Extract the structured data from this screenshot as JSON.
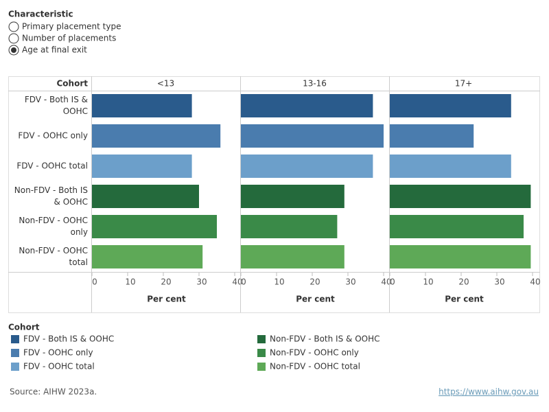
{
  "controls": {
    "title": "Characteristic",
    "options": [
      "Primary placement type",
      "Number of placements",
      "Age at final exit"
    ],
    "selected": 2
  },
  "chart_data": {
    "type": "bar",
    "orientation": "horizontal",
    "row_header": "Cohort",
    "categories": [
      "<13",
      "13-16",
      "17+"
    ],
    "series": [
      {
        "name": "FDV - Both IS & OOHC",
        "color": "#2a5b8c",
        "values": [
          28,
          37,
          34
        ]
      },
      {
        "name": "FDV - OOHC only",
        "color": "#4a7cae",
        "values": [
          36,
          40,
          23.5
        ]
      },
      {
        "name": "FDV - OOHC total",
        "color": "#6c9fca",
        "values": [
          28,
          37,
          34
        ]
      },
      {
        "name": "Non-FDV - Both IS & OOHC",
        "color": "#246a3c",
        "values": [
          30,
          29,
          39.5
        ]
      },
      {
        "name": "Non-FDV - OOHC only",
        "color": "#3a8a48",
        "values": [
          35,
          27,
          37.5
        ]
      },
      {
        "name": "Non-FDV - OOHC total",
        "color": "#5ea957",
        "values": [
          31,
          29,
          39.5
        ]
      }
    ],
    "xlabel": "Per cent",
    "xlim": [
      0,
      40
    ],
    "xticks": [
      0,
      10,
      20,
      30,
      40
    ],
    "legend_title": "Cohort"
  },
  "source": "Source: AIHW 2023a.",
  "url": "https://www.aihw.gov.au"
}
